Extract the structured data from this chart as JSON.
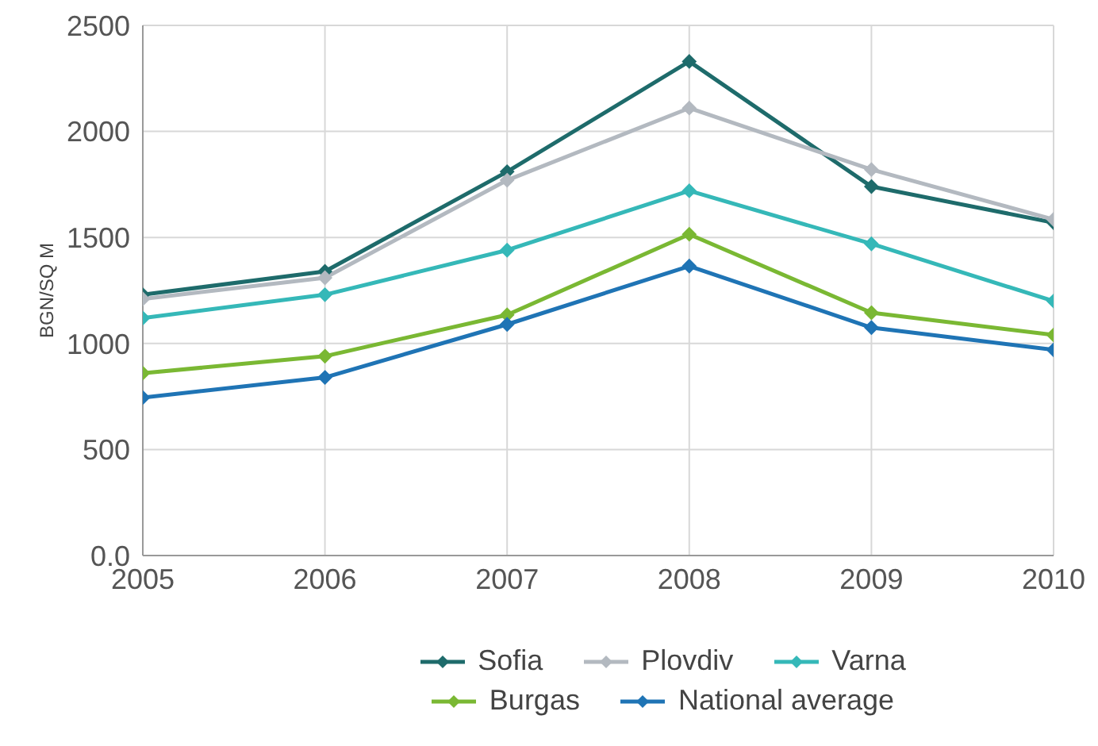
{
  "chart_data": {
    "type": "line",
    "ylabel": "BGN/SQ M",
    "x": [
      2005,
      2006,
      2007,
      2008,
      2009,
      2010
    ],
    "xlim": [
      2005,
      2010
    ],
    "xticks": [
      2005,
      2006,
      2007,
      2008,
      2009,
      2010
    ],
    "ylim": [
      0,
      2500
    ],
    "yticks": [
      {
        "value": 0,
        "label": "0.0"
      },
      500,
      1000,
      1500,
      2000,
      2500
    ],
    "grid": true,
    "legend": "bottom",
    "marker": "diamond",
    "line_style": "solid",
    "series": [
      {
        "name": "Sofia",
        "color": "#1e6b6b",
        "values": [
          1230,
          1340,
          1810,
          2330,
          1740,
          1570
        ]
      },
      {
        "name": "Plovdiv",
        "color": "#b3b9c0",
        "values": [
          1210,
          1310,
          1770,
          2110,
          1820,
          1585
        ]
      },
      {
        "name": "Varna",
        "color": "#35b8b8",
        "values": [
          1120,
          1230,
          1440,
          1720,
          1470,
          1200
        ]
      },
      {
        "name": "Burgas",
        "color": "#7ab833",
        "values": [
          860,
          940,
          1135,
          1515,
          1145,
          1040
        ]
      },
      {
        "name": "National average",
        "color": "#1f74b5",
        "values": [
          745,
          840,
          1090,
          1365,
          1075,
          970
        ]
      }
    ]
  }
}
